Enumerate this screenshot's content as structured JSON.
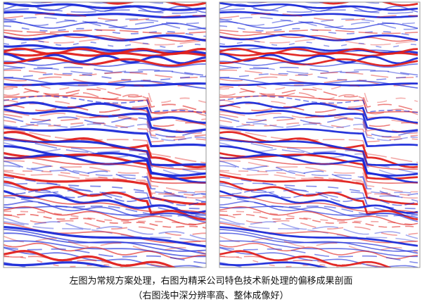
{
  "figure": {
    "caption": {
      "line1": "左图为常规方案处理，右图为精采公司特色技术新处理的偏移成果剖面",
      "line2": "（右图浅中深分辨率高、整体成像好）"
    }
  }
}
